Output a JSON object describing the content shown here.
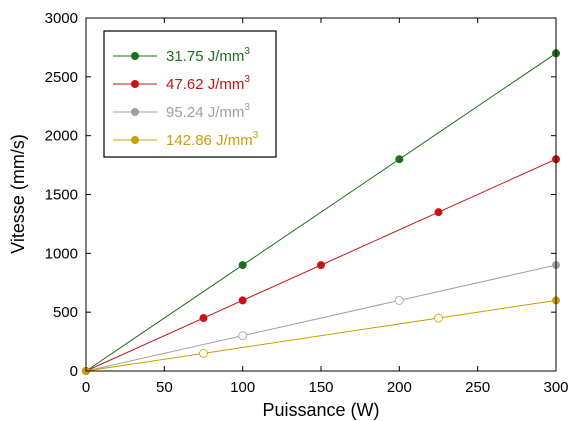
{
  "chart_data": {
    "type": "scatter",
    "xlabel": "Puissance (W)",
    "ylabel": "Vitesse (mm/s)",
    "xlim": [
      0,
      300
    ],
    "ylim": [
      0,
      3000
    ],
    "xticks": [
      0,
      50,
      100,
      150,
      200,
      250,
      300
    ],
    "yticks": [
      0,
      500,
      1000,
      1500,
      2000,
      2500,
      3000
    ],
    "grid": false,
    "legend_position": "top-left",
    "series": [
      {
        "name": "31.75 J/mm",
        "unit_exponent": "3",
        "color": "#1e6e1e",
        "marker": "filled",
        "x": [
          0,
          100,
          200,
          300
        ],
        "y": [
          0,
          900,
          1800,
          2700
        ],
        "fit_end": [
          300,
          2700
        ]
      },
      {
        "name": "47.62 J/mm",
        "unit_exponent": "3",
        "color": "#c81414",
        "marker": "filled",
        "x": [
          0,
          75,
          100,
          150,
          225,
          300
        ],
        "y": [
          0,
          450,
          600,
          900,
          1350,
          1800
        ],
        "fit_end": [
          300,
          1800
        ]
      },
      {
        "name": "95.24 J/mm",
        "unit_exponent": "3",
        "color": "#a0a0a0",
        "marker": "mixed",
        "x": [
          0,
          100,
          200,
          300
        ],
        "y": [
          0,
          300,
          600,
          900
        ],
        "fit_end": [
          300,
          900
        ]
      },
      {
        "name": "142.86 J/mm",
        "unit_exponent": "3",
        "color": "#c8a000",
        "marker": "mixed",
        "x": [
          0,
          75,
          225,
          300
        ],
        "y": [
          0,
          150,
          450,
          600
        ],
        "fit_end": [
          300,
          600
        ]
      }
    ]
  }
}
